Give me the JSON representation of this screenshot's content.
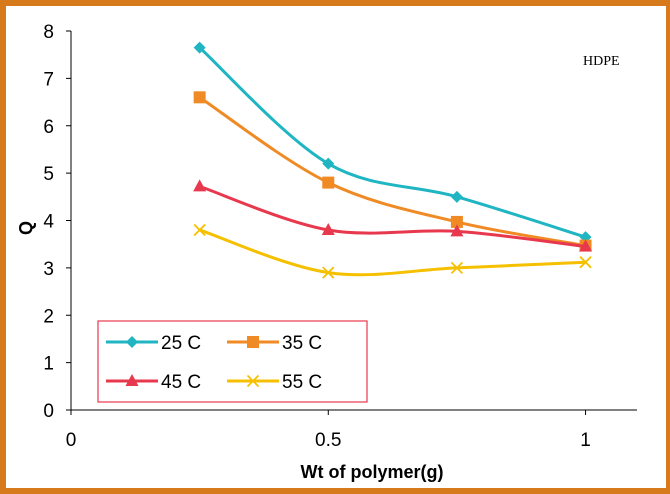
{
  "chart_data": {
    "type": "line",
    "annotation": "HDPE",
    "xlabel": "Wt of polymer(g)",
    "ylabel": "Q",
    "xlim": [
      0,
      1.1
    ],
    "ylim": [
      0,
      8
    ],
    "xticks": [
      0,
      0.5,
      1
    ],
    "xtick_labels": [
      "0",
      "0.5",
      "1"
    ],
    "yticks": [
      0,
      1,
      2,
      3,
      4,
      5,
      6,
      7,
      8
    ],
    "ytick_labels": [
      "0",
      "1",
      "2",
      "3",
      "4",
      "5",
      "6",
      "7",
      "8"
    ],
    "grid": false,
    "legend_position": "bottom-left",
    "x": [
      0.25,
      0.5,
      0.75,
      1
    ],
    "series": [
      {
        "name": "25 C",
        "color": "#1fb5c2",
        "marker": "diamond",
        "values": [
          7.65,
          5.2,
          4.5,
          3.65
        ]
      },
      {
        "name": "35 C",
        "color": "#f08a24",
        "marker": "square",
        "values": [
          6.6,
          4.8,
          3.97,
          3.47
        ]
      },
      {
        "name": "45 C",
        "color": "#e8384d",
        "marker": "triangle",
        "values": [
          4.72,
          3.8,
          3.77,
          3.45
        ]
      },
      {
        "name": "55 C",
        "color": "#f5c000",
        "marker": "x",
        "values": [
          3.8,
          2.9,
          3.0,
          3.12
        ]
      }
    ]
  }
}
